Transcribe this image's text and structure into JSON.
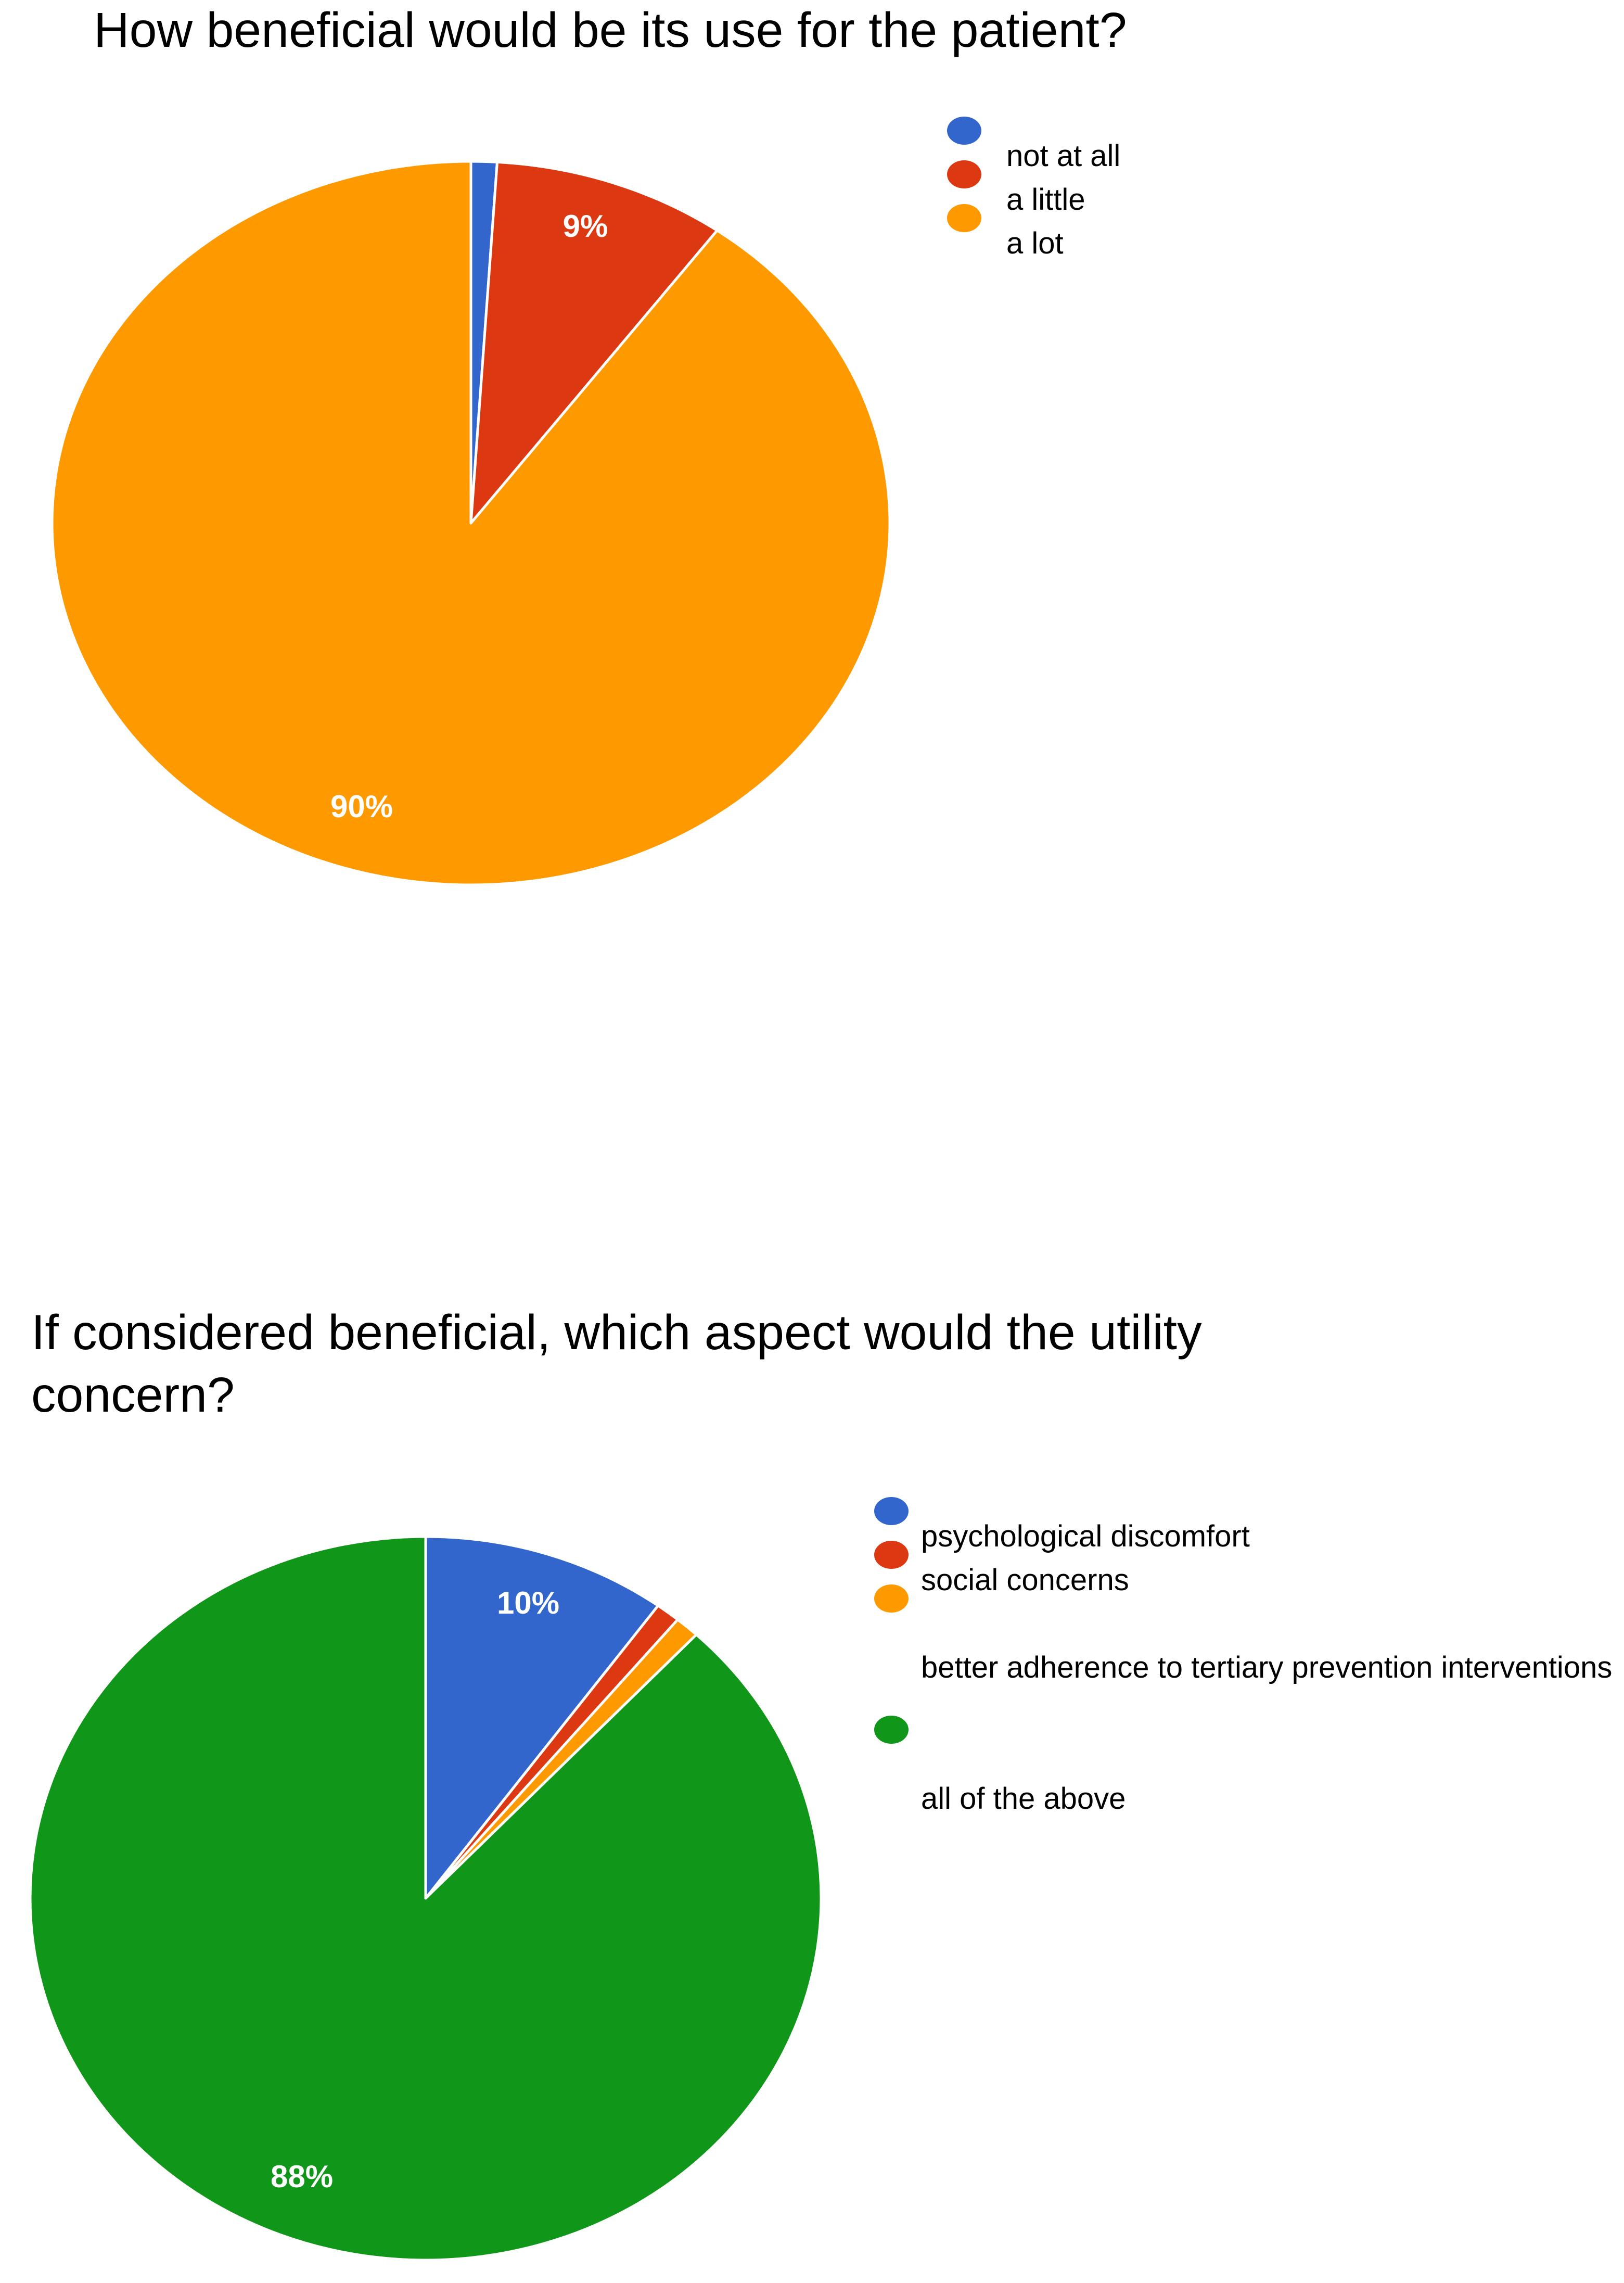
{
  "chart_data": [
    {
      "type": "pie",
      "title": "How beneficial would be its use for the patient?",
      "categories": [
        "not at all",
        "a little",
        "a lot"
      ],
      "values": [
        1,
        9,
        90
      ],
      "slice_labels": [
        "",
        "9%",
        "90%"
      ],
      "colors": [
        "#3366cc",
        "#dc3912",
        "#ff9900"
      ],
      "legend_position": "top-right"
    },
    {
      "type": "pie",
      "title": "If considered beneficial, which aspect would the utility concern?",
      "categories": [
        "psychological discomfort",
        "social concerns",
        "better adherence to tertiary prevention interventions",
        "all of the above"
      ],
      "values": [
        10,
        1,
        1,
        88
      ],
      "slice_labels": [
        "10%",
        "",
        "",
        "88%"
      ],
      "colors": [
        "#3366cc",
        "#dc3912",
        "#ff9900",
        "#109618"
      ],
      "legend_position": "top-right"
    }
  ]
}
